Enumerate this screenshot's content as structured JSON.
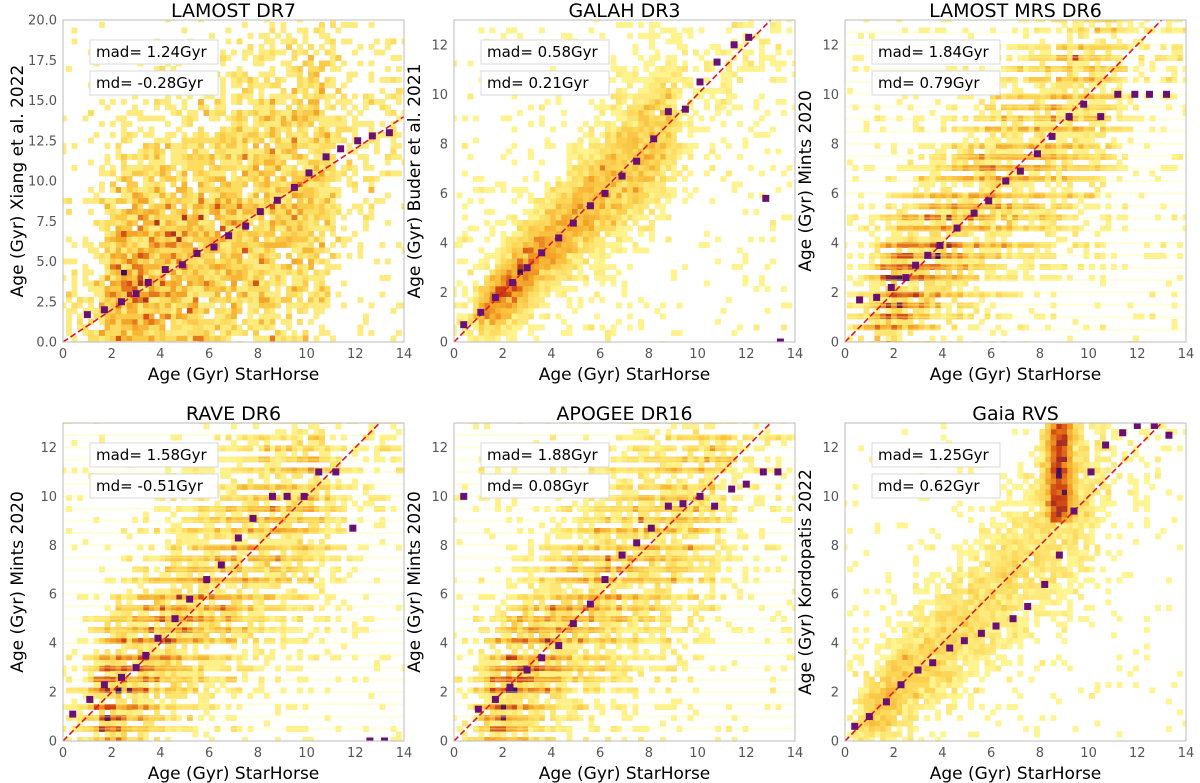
{
  "chart_data": [
    {
      "type": "scatter",
      "title": "LAMOST DR7",
      "xlabel": "Age (Gyr) StarHorse",
      "ylabel": "Age (Gyr) Xiang et al. 2022",
      "xlim": [
        0,
        14
      ],
      "ylim": [
        0,
        20
      ],
      "xticks": [
        "0",
        "2",
        "4",
        "6",
        "8",
        "10",
        "12",
        "14"
      ],
      "yticks": [
        "0.0",
        "2.5",
        "5.0",
        "7.5",
        "10.0",
        "12.5",
        "15.0",
        "17.5",
        "20.0"
      ],
      "ytick_values": [
        0,
        2.5,
        5,
        7.5,
        10,
        12.5,
        15,
        17.5,
        20
      ],
      "stats": {
        "mad": "mad= 1.24Gyr",
        "md": "md= -0.28Gyr"
      },
      "binned_medians": {
        "x": [
          1.0,
          1.7,
          2.4,
          3.0,
          3.5,
          4.2,
          4.9,
          5.5,
          6.2,
          6.8,
          7.5,
          8.1,
          8.8,
          9.5,
          10.1,
          10.8,
          11.4,
          12.1,
          12.7,
          13.4
        ],
        "y": [
          1.7,
          2.0,
          2.5,
          3.0,
          3.7,
          4.5,
          4.8,
          5.5,
          5.9,
          6.6,
          7.2,
          8.1,
          8.8,
          9.6,
          10.5,
          11.5,
          12.0,
          12.5,
          12.8,
          13.0
        ]
      },
      "reference_line": "y=x",
      "density": {
        "kind": "linear",
        "sx": 1.1,
        "sy": 4.2,
        "cx_range": [
          2,
          11
        ],
        "spread_grow": 0.18,
        "stripes": false,
        "wing": false
      }
    },
    {
      "type": "scatter",
      "title": "GALAH DR3",
      "xlabel": "Age (Gyr) StarHorse",
      "ylabel": "Age (Gyr) Buder et al. 2021",
      "xlim": [
        0,
        14
      ],
      "ylim": [
        0,
        13
      ],
      "xticks": [
        "0",
        "2",
        "4",
        "6",
        "8",
        "10",
        "12",
        "14"
      ],
      "yticks": [
        "0",
        "2",
        "4",
        "6",
        "8",
        "10",
        "12"
      ],
      "ytick_values": [
        0,
        2,
        4,
        6,
        8,
        10,
        12
      ],
      "stats": {
        "mad": "mad= 0.58Gyr",
        "md": "md= 0.21Gyr"
      },
      "binned_medians": {
        "x": [
          0.4,
          1.1,
          1.7,
          2.4,
          3.0,
          3.6,
          4.3,
          4.9,
          5.6,
          6.2,
          6.9,
          7.5,
          8.2,
          8.8,
          9.5,
          10.1,
          10.8,
          11.5,
          12.1,
          12.8,
          13.4
        ],
        "y": [
          0.7,
          1.2,
          1.8,
          2.4,
          3.0,
          3.6,
          4.2,
          4.8,
          5.5,
          6.0,
          6.7,
          7.3,
          8.2,
          9.3,
          9.4,
          10.5,
          11.3,
          12.0,
          12.3,
          5.8,
          0.0
        ]
      },
      "reference_line": "y=x",
      "density": {
        "kind": "linear",
        "sx": 0.9,
        "sy": 0.45,
        "cx_range": [
          1.5,
          9
        ],
        "spread_grow": 0.12,
        "stripes": false,
        "wing": false
      }
    },
    {
      "type": "scatter",
      "title": "LAMOST MRS DR6",
      "xlabel": "Age (Gyr) StarHorse",
      "ylabel": "Age (Gyr) Mints 2020",
      "xlim": [
        0,
        14
      ],
      "ylim": [
        0,
        13
      ],
      "xticks": [
        "0",
        "2",
        "4",
        "6",
        "8",
        "10",
        "12",
        "14"
      ],
      "yticks": [
        "0",
        "2",
        "4",
        "6",
        "8",
        "10",
        "12"
      ],
      "ytick_values": [
        0,
        2,
        4,
        6,
        8,
        10,
        12
      ],
      "stats": {
        "mad": "mad= 1.84Gyr",
        "md": "md= 0.79Gyr"
      },
      "binned_medians": {
        "x": [
          0.6,
          1.3,
          1.9,
          2.5,
          2.9,
          3.4,
          3.9,
          4.6,
          5.3,
          5.9,
          6.6,
          7.2,
          7.9,
          8.5,
          9.2,
          9.8,
          10.5,
          11.2,
          11.9,
          12.5,
          13.2
        ],
        "y": [
          1.7,
          1.8,
          2.2,
          2.6,
          3.1,
          3.5,
          3.9,
          4.6,
          5.2,
          5.7,
          6.5,
          6.9,
          7.6,
          8.3,
          9.1,
          9.6,
          9.1,
          10.0,
          10.0,
          10.0,
          10.0
        ]
      },
      "reference_line": "y=x",
      "density": {
        "kind": "linear",
        "sx": 1.4,
        "sy": 1.3,
        "cx_range": [
          1.5,
          11
        ],
        "spread_grow": 0.15,
        "stripes": true,
        "wing": false
      }
    },
    {
      "type": "scatter",
      "title": "RAVE DR6",
      "xlabel": "Age (Gyr) StarHorse",
      "ylabel": "Age (Gyr) Mints 2020",
      "xlim": [
        0,
        14
      ],
      "ylim": [
        0,
        13
      ],
      "xticks": [
        "0",
        "2",
        "4",
        "6",
        "8",
        "10",
        "12",
        "14"
      ],
      "yticks": [
        "0",
        "2",
        "4",
        "6",
        "8",
        "10",
        "12"
      ],
      "ytick_values": [
        0,
        2,
        4,
        6,
        8,
        10,
        12
      ],
      "stats": {
        "mad": "mad= 1.58Gyr",
        "md": "md= -0.51Gyr"
      },
      "binned_medians": {
        "x": [
          0.4,
          1.1,
          1.7,
          2.4,
          3.0,
          3.4,
          3.9,
          4.6,
          5.2,
          5.9,
          6.5,
          7.2,
          7.8,
          8.6,
          9.2,
          9.9,
          10.5,
          11.2,
          11.9,
          12.6,
          13.2
        ],
        "y": [
          1.1,
          1.7,
          2.3,
          2.6,
          3.0,
          3.5,
          4.2,
          5.0,
          5.8,
          6.6,
          7.2,
          8.3,
          9.1,
          10.0,
          10.0,
          10.0,
          11.0,
          11.0,
          8.7,
          0.0,
          0.0
        ]
      },
      "reference_line": "y=x",
      "density": {
        "kind": "linear",
        "sx": 1.5,
        "sy": 1.4,
        "cx_range": [
          1.5,
          11
        ],
        "spread_grow": 0.15,
        "stripes": true,
        "wing": false
      }
    },
    {
      "type": "scatter",
      "title": "APOGEE DR16",
      "xlabel": "Age (Gyr) StarHorse",
      "ylabel": "Age (Gyr) Mints 2020",
      "xlim": [
        0,
        14
      ],
      "ylim": [
        0,
        13
      ],
      "xticks": [
        "0",
        "2",
        "4",
        "6",
        "8",
        "10",
        "12",
        "14"
      ],
      "yticks": [
        "0",
        "2",
        "4",
        "6",
        "8",
        "10",
        "12"
      ],
      "ytick_values": [
        0,
        2,
        4,
        6,
        8,
        10,
        12
      ],
      "stats": {
        "mad": "mad= 1.88Gyr",
        "md": "md= 0.08Gyr"
      },
      "binned_medians": {
        "x": [
          0.4,
          1.0,
          1.7,
          2.3,
          3.0,
          3.6,
          4.3,
          4.9,
          5.6,
          6.2,
          6.9,
          7.5,
          8.1,
          8.8,
          9.4,
          10.1,
          10.7,
          11.4,
          12.0,
          12.7,
          13.3
        ],
        "y": [
          10.0,
          1.3,
          1.7,
          2.2,
          2.9,
          3.4,
          3.9,
          4.8,
          5.6,
          6.6,
          7.6,
          8.1,
          8.7,
          9.6,
          9.7,
          10.0,
          9.6,
          10.3,
          10.5,
          11.0,
          11.0
        ]
      },
      "reference_line": "y=x",
      "density": {
        "kind": "linear",
        "sx": 1.5,
        "sy": 1.4,
        "cx_range": [
          1.5,
          11
        ],
        "spread_grow": 0.15,
        "stripes": true,
        "wing": false
      }
    },
    {
      "type": "scatter",
      "title": "Gaia RVS",
      "xlabel": "Age (Gyr) StarHorse",
      "ylabel": "Age (Gyr) Kordopatis 2022",
      "xlim": [
        0,
        14
      ],
      "ylim": [
        0,
        13
      ],
      "xticks": [
        "0",
        "2",
        "4",
        "6",
        "8",
        "10",
        "12",
        "14"
      ],
      "yticks": [
        "0",
        "2",
        "4",
        "6",
        "8",
        "10",
        "12"
      ],
      "ytick_values": [
        0,
        2,
        4,
        6,
        8,
        10,
        12
      ],
      "stats": {
        "mad": "mad= 1.25Gyr",
        "md": "md= 0.62Gyr"
      },
      "binned_medians": {
        "x": [
          0.4,
          1.0,
          1.7,
          2.3,
          3.0,
          3.6,
          4.3,
          4.9,
          5.6,
          6.2,
          6.9,
          7.5,
          8.2,
          8.8,
          9.4,
          10.1,
          10.7,
          11.4,
          12.0,
          12.7,
          13.3
        ],
        "y": [
          0.6,
          1.0,
          1.6,
          2.3,
          2.9,
          3.2,
          3.8,
          4.1,
          4.4,
          4.7,
          5.0,
          5.5,
          6.4,
          7.6,
          9.4,
          11.0,
          12.1,
          12.6,
          12.9,
          12.9,
          12.5
        ]
      },
      "reference_line": "y=x",
      "density": {
        "kind": "linear",
        "sx": 1.0,
        "sy": 0.7,
        "cx_range": [
          1.0,
          10.5
        ],
        "spread_grow": 0.12,
        "stripes": false,
        "wing": true
      }
    }
  ],
  "colors": {
    "median_marker": "#6a0f73",
    "reference_line": "#e8141b",
    "axis_frame": "#bbbbbb",
    "tick_label": "#555555",
    "density_low": "#ffff99",
    "density_mid": "#f5a321",
    "density_high": "#cc3a0d",
    "density_peak": "#3b0f5a"
  }
}
